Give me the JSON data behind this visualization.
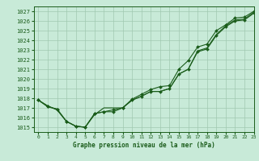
{
  "title": "Graphe pression niveau de la mer (hPa)",
  "bg_color": "#c8ead8",
  "grid_color": "#a0c8b0",
  "line_color": "#1a5c1a",
  "marker_color": "#1a5c1a",
  "xlim": [
    -0.5,
    23
  ],
  "ylim": [
    1014.5,
    1027.5
  ],
  "yticks": [
    1015,
    1016,
    1017,
    1018,
    1019,
    1020,
    1021,
    1022,
    1023,
    1024,
    1025,
    1026,
    1027
  ],
  "xticks": [
    0,
    1,
    2,
    3,
    4,
    5,
    6,
    7,
    8,
    9,
    10,
    11,
    12,
    13,
    14,
    15,
    16,
    17,
    18,
    19,
    20,
    21,
    22,
    23
  ],
  "series1_x": [
    0,
    1,
    2,
    3,
    4,
    5,
    6,
    7,
    8,
    9,
    10,
    11,
    12,
    13,
    14,
    15,
    16,
    17,
    18,
    19,
    20,
    21,
    22,
    23
  ],
  "series1_y": [
    1017.8,
    1017.2,
    1016.8,
    1015.6,
    1015.1,
    1015.0,
    1016.4,
    1016.6,
    1016.6,
    1017.0,
    1017.8,
    1018.2,
    1018.7,
    1018.7,
    1019.0,
    1020.5,
    1021.0,
    1022.8,
    1023.1,
    1024.5,
    1025.4,
    1026.0,
    1026.1,
    1026.8
  ],
  "series2_x": [
    0,
    1,
    2,
    3,
    4,
    5,
    6,
    7,
    8,
    9,
    10,
    11,
    12,
    13,
    14,
    15,
    16,
    17,
    18,
    19,
    20,
    21,
    22,
    23
  ],
  "series2_y": [
    1017.8,
    1017.1,
    1016.9,
    1015.6,
    1015.1,
    1015.0,
    1016.3,
    1017.0,
    1017.0,
    1017.0,
    1017.8,
    1018.2,
    1018.7,
    1018.7,
    1019.0,
    1020.5,
    1021.0,
    1022.9,
    1023.2,
    1024.6,
    1025.5,
    1026.1,
    1026.2,
    1026.9
  ],
  "series3_x": [
    0,
    1,
    2,
    3,
    4,
    5,
    6,
    7,
    8,
    9,
    10,
    11,
    12,
    13,
    14,
    15,
    16,
    17,
    18,
    19,
    20,
    21,
    22,
    23
  ],
  "series3_y": [
    1017.8,
    1017.2,
    1016.8,
    1015.6,
    1015.1,
    1015.0,
    1016.4,
    1016.6,
    1016.8,
    1017.0,
    1017.9,
    1018.4,
    1018.9,
    1019.2,
    1019.3,
    1021.0,
    1021.9,
    1023.3,
    1023.6,
    1025.0,
    1025.6,
    1026.3,
    1026.4,
    1027.0
  ]
}
